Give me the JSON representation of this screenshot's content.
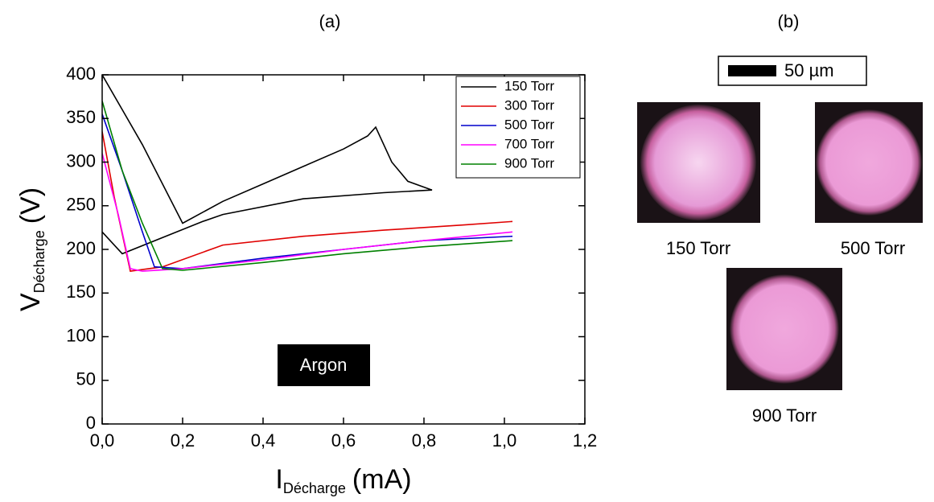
{
  "chart_data": {
    "type": "line",
    "title": "(a)",
    "x_label": "I",
    "x_label_sub": "Décharge",
    "x_label_unit": "(mA)",
    "y_label": "V",
    "y_label_sub": "Décharge",
    "y_label_unit": "(V)",
    "annotation": "Argon",
    "xlim": [
      0,
      1.2
    ],
    "xticks": [
      {
        "value": 0,
        "label": "0,0"
      },
      {
        "value": 0.2,
        "label": "0,2"
      },
      {
        "value": 0.4,
        "label": "0,4"
      },
      {
        "value": 0.6,
        "label": "0,6"
      },
      {
        "value": 0.8,
        "label": "0,8"
      },
      {
        "value": 1.0,
        "label": "1,0"
      },
      {
        "value": 1.2,
        "label": "1,2"
      }
    ],
    "ylim": [
      0,
      400
    ],
    "yticks": [
      0,
      50,
      100,
      150,
      200,
      250,
      300,
      350,
      400
    ],
    "legend": "top-right",
    "series": [
      {
        "name": "150 Torr",
        "color": "#000000",
        "x": [
          0.0,
          0.05,
          0.1,
          0.2,
          0.3,
          0.4,
          0.5,
          0.6,
          0.66,
          0.68,
          0.72,
          0.76,
          0.82,
          0.7,
          0.5,
          0.3,
          0.25,
          0.05,
          0.0
        ],
        "values": [
          400,
          360,
          320,
          230,
          255,
          275,
          295,
          315,
          330,
          340,
          300,
          278,
          268,
          265,
          258,
          240,
          232,
          195,
          220
        ]
      },
      {
        "name": "300 Torr",
        "color": "#e00000",
        "x": [
          0.0,
          0.03,
          0.07,
          0.15,
          0.3,
          0.5,
          0.7,
          0.9,
          1.02
        ],
        "values": [
          335,
          260,
          175,
          180,
          205,
          215,
          222,
          228,
          232
        ]
      },
      {
        "name": "500 Torr",
        "color": "#0000cc",
        "x": [
          0.0,
          0.05,
          0.1,
          0.13,
          0.2,
          0.4,
          0.6,
          0.8,
          1.02
        ],
        "values": [
          355,
          290,
          220,
          180,
          178,
          190,
          200,
          210,
          215
        ]
      },
      {
        "name": "700 Torr",
        "color": "#ff00ff",
        "x": [
          0.0,
          0.04,
          0.07,
          0.1,
          0.2,
          0.4,
          0.6,
          0.8,
          1.02
        ],
        "values": [
          310,
          240,
          178,
          175,
          178,
          188,
          200,
          210,
          220
        ]
      },
      {
        "name": "900 Torr",
        "color": "#008000",
        "x": [
          0.0,
          0.05,
          0.1,
          0.15,
          0.2,
          0.4,
          0.6,
          0.8,
          1.02
        ],
        "values": [
          370,
          290,
          230,
          178,
          176,
          185,
          195,
          203,
          210
        ]
      }
    ]
  },
  "panel_b": {
    "title": "(b)",
    "scale_bar": "50 µm",
    "images": [
      {
        "label": "150 Torr"
      },
      {
        "label": "500 Torr"
      },
      {
        "label": "900 Torr"
      }
    ]
  }
}
